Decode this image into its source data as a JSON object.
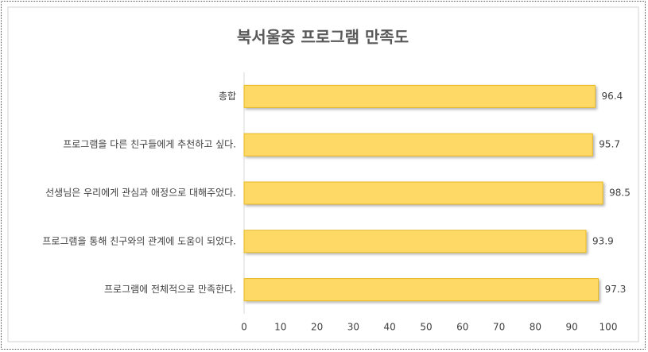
{
  "chart_data": {
    "type": "bar",
    "orientation": "horizontal",
    "title": "북서울중 프로그램 만족도",
    "categories": [
      "총합",
      "프로그램을 다른 친구들에게 추천하고 싶다.",
      "선생님은 우리에게 관심과 애정으로 대해주었다.",
      "프로그램을 통해 친구와의 관계에 도움이 되었다.",
      "프로그램에 전체적으로 만족한다."
    ],
    "values": [
      96.4,
      95.7,
      98.5,
      93.9,
      97.3
    ],
    "color": "#ffd966",
    "border_color": "#e6b822",
    "xlim": [
      0,
      100
    ],
    "xticks": [
      0,
      10,
      20,
      30,
      40,
      50,
      60,
      70,
      80,
      90,
      100
    ],
    "grid": false
  }
}
